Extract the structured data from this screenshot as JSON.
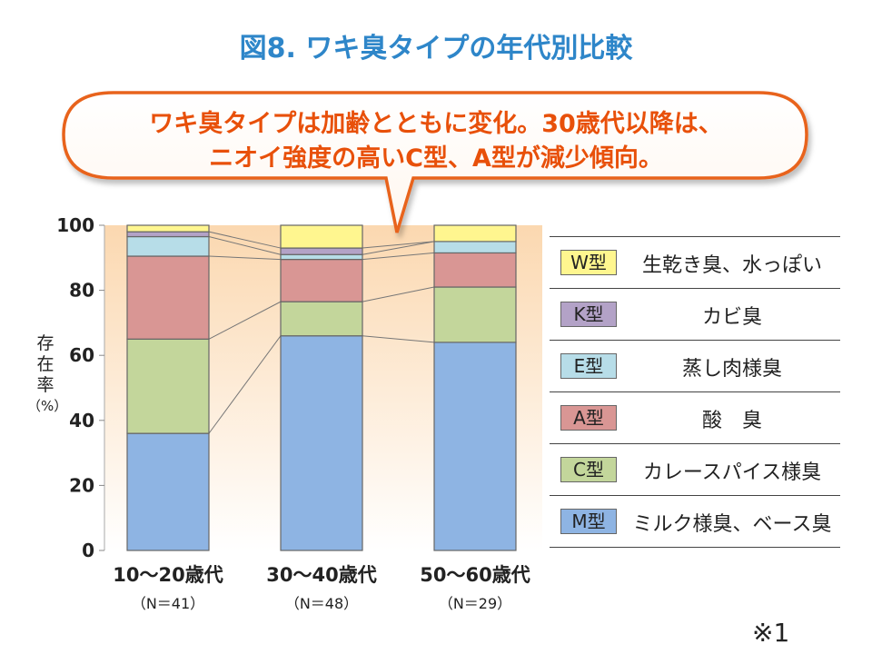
{
  "title": "図8. ワキ臭タイプの年代別比較",
  "callout": {
    "line1": "ワキ臭タイプは加齢とともに変化。30歳代以降は、",
    "line2": "ニオイ強度の高いC型、A型が減少傾向。"
  },
  "yaxis_title": "存在率",
  "yaxis_unit": "（%）",
  "note": "※1",
  "colors": {
    "W": "#fff68f",
    "K": "#b3a2c7",
    "E": "#b7dde8",
    "A": "#d99694",
    "C": "#c3d69b",
    "M": "#8eb4e3",
    "title": "#2e86c9",
    "callout_text": "#e8500a",
    "callout_border": "#e8641e"
  },
  "legend": [
    {
      "code": "W型",
      "series": "W",
      "desc": "生乾き臭、水っぽい"
    },
    {
      "code": "K型",
      "series": "K",
      "desc": "カビ臭"
    },
    {
      "code": "E型",
      "series": "E",
      "desc": "蒸し肉様臭"
    },
    {
      "code": "A型",
      "series": "A",
      "desc": "酸　臭"
    },
    {
      "code": "C型",
      "series": "C",
      "desc": "カレースパイス様臭"
    },
    {
      "code": "M型",
      "series": "M",
      "desc": "ミルク様臭、ベース臭"
    }
  ],
  "chart_data": {
    "type": "bar",
    "stacked": true,
    "categories": [
      "10～20歳代",
      "30～40歳代",
      "50～60歳代"
    ],
    "category_notes": [
      "（N＝41）",
      "（N＝48）",
      "（N＝29）"
    ],
    "series": [
      {
        "name": "M型",
        "key": "M",
        "values": [
          36,
          66,
          64
        ]
      },
      {
        "name": "C型",
        "key": "C",
        "values": [
          29,
          10.5,
          17
        ]
      },
      {
        "name": "A型",
        "key": "A",
        "values": [
          25.5,
          13,
          10.5
        ]
      },
      {
        "name": "E型",
        "key": "E",
        "values": [
          6,
          1.5,
          3.5
        ]
      },
      {
        "name": "K型",
        "key": "K",
        "values": [
          1.5,
          2,
          0
        ]
      },
      {
        "name": "W型",
        "key": "W",
        "values": [
          2,
          7,
          5
        ]
      }
    ],
    "ylim": [
      0,
      100
    ],
    "yticks": [
      0,
      20,
      40,
      60,
      80,
      100
    ],
    "connector_lines": true,
    "legend_position": "right"
  }
}
